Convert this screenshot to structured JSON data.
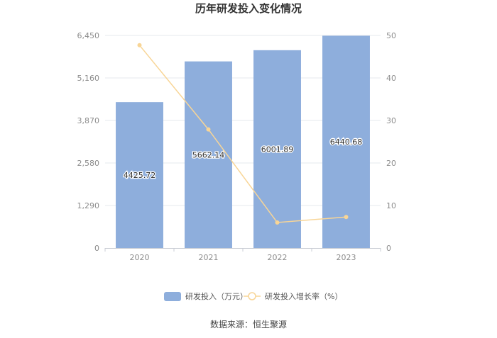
{
  "chart_data": {
    "type": "bar",
    "title": "历年研发投入变化情况",
    "categories": [
      "2020",
      "2021",
      "2022",
      "2023"
    ],
    "series": [
      {
        "name": "研发投入（万元）",
        "kind": "bar",
        "axis": "left",
        "color": "#8eaedc",
        "values": [
          4425.72,
          5662.14,
          6001.89,
          6440.68
        ],
        "labels": [
          "4425.72",
          "5662.14",
          "6001.89",
          "6440.68"
        ]
      },
      {
        "name": "研发投入增长率（%）",
        "kind": "line",
        "axis": "right",
        "color": "#f8d596",
        "values": [
          47.7,
          27.9,
          6.0,
          7.3
        ]
      }
    ],
    "y_left": {
      "min": 0,
      "max": 6450,
      "ticks": [
        "0",
        "1,290",
        "2,580",
        "3,870",
        "5,160",
        "6,450"
      ]
    },
    "y_right": {
      "min": 0,
      "max": 50,
      "ticks": [
        "0",
        "10",
        "20",
        "30",
        "40",
        "50"
      ]
    },
    "legend_position": "bottom",
    "grid": true
  },
  "footer": {
    "source": "数据来源：恒生聚源"
  }
}
